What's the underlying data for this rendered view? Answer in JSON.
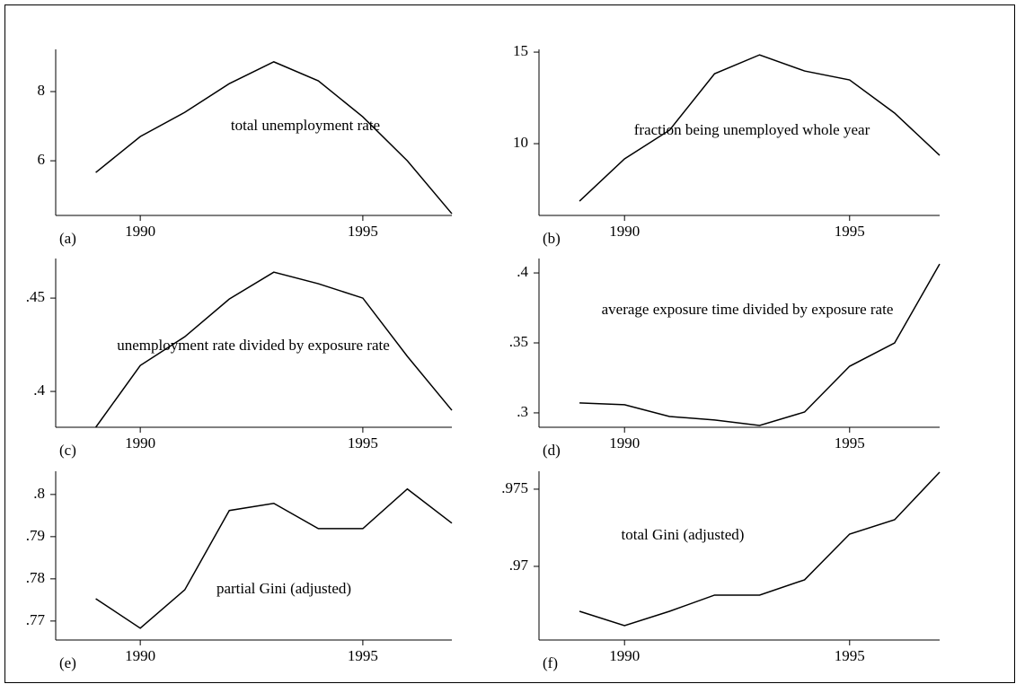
{
  "chart_data": [
    {
      "type": "line",
      "panel": "(a)",
      "title": "total unemployment rate",
      "x": [
        1989,
        1990,
        1991,
        1992,
        1993,
        1994,
        1995,
        1996,
        1997
      ],
      "values": [
        5.66,
        6.7,
        7.4,
        8.23,
        8.86,
        8.31,
        7.27,
        6.0,
        4.47
      ],
      "xlim": [
        1988.1,
        1997
      ],
      "xticks": [
        1990,
        1995
      ],
      "ylim": [
        4.42,
        9.22
      ],
      "yticks": [
        6,
        8
      ],
      "color": "#000000"
    },
    {
      "type": "line",
      "panel": "(b)",
      "title": "fraction being unemployed whole year",
      "x": [
        1989,
        1990,
        1991,
        1992,
        1993,
        1994,
        1995,
        1996,
        1997
      ],
      "values": [
        6.86,
        9.17,
        10.74,
        13.82,
        14.85,
        13.97,
        13.48,
        11.67,
        9.36
      ],
      "xlim": [
        1988.1,
        1997
      ],
      "xticks": [
        1990,
        1995
      ],
      "ylim": [
        6.08,
        15.15
      ],
      "yticks": [
        10,
        15
      ],
      "color": "#000000"
    },
    {
      "type": "line",
      "panel": "(c)",
      "title": "unemployment rate divided by exposure rate",
      "x": [
        1989,
        1990,
        1991,
        1992,
        1993,
        1994,
        1995,
        1996,
        1997
      ],
      "values": [
        0.3808,
        0.4139,
        0.4293,
        0.4495,
        0.4639,
        0.4577,
        0.45,
        0.4188,
        0.3899
      ],
      "xlim": [
        1988.1,
        1997
      ],
      "xticks": [
        1990,
        1995
      ],
      "ylim": [
        0.3808,
        0.4712
      ],
      "yticks": [
        {
          "value": 0.4,
          "label": ".4"
        },
        {
          "value": 0.45,
          "label": ".45"
        }
      ],
      "color": "#000000"
    },
    {
      "type": "line",
      "panel": "(d)",
      "title": "average exposure time divided by exposure rate",
      "x": [
        1989,
        1990,
        1991,
        1992,
        1993,
        1994,
        1995,
        1996,
        1997
      ],
      "values": [
        0.3071,
        0.3058,
        0.2974,
        0.2949,
        0.291,
        0.3006,
        0.3333,
        0.35,
        0.4064
      ],
      "xlim": [
        1988.1,
        1997
      ],
      "xticks": [
        1990,
        1995
      ],
      "ylim": [
        0.2897,
        0.4103
      ],
      "yticks": [
        {
          "value": 0.3,
          "label": ".3"
        },
        {
          "value": 0.35,
          "label": ".35"
        },
        {
          "value": 0.4,
          "label": ".4"
        }
      ],
      "color": "#000000"
    },
    {
      "type": "line",
      "panel": "(e)",
      "title": "partial Gini (adjusted)",
      "x": [
        1989,
        1990,
        1991,
        1992,
        1993,
        1994,
        1995,
        1996,
        1997
      ],
      "values": [
        0.7753,
        0.7683,
        0.7774,
        0.7962,
        0.7979,
        0.7919,
        0.7919,
        0.8013,
        0.7932
      ],
      "xlim": [
        1988.1,
        1997
      ],
      "xticks": [
        1990,
        1995
      ],
      "ylim": [
        0.7655,
        0.8055
      ],
      "yticks": [
        {
          "value": 0.77,
          "label": ".77"
        },
        {
          "value": 0.78,
          "label": ".78"
        },
        {
          "value": 0.79,
          "label": ".79"
        },
        {
          "value": 0.8,
          "label": ".8"
        }
      ],
      "color": "#000000"
    },
    {
      "type": "line",
      "panel": "(f)",
      "title": "total Gini (adjusted)",
      "x": [
        1989,
        1990,
        1991,
        1992,
        1993,
        1994,
        1995,
        1996,
        1997
      ],
      "values": [
        0.96709,
        0.96616,
        0.96709,
        0.96814,
        0.96814,
        0.96913,
        0.97209,
        0.97302,
        0.9761
      ],
      "xlim": [
        1988.1,
        1997
      ],
      "xticks": [
        1990,
        1995
      ],
      "ylim": [
        0.96523,
        0.97616
      ],
      "yticks": [
        {
          "value": 0.97,
          "label": ".97"
        },
        {
          "value": 0.975,
          "label": ".975"
        }
      ],
      "color": "#000000"
    }
  ]
}
